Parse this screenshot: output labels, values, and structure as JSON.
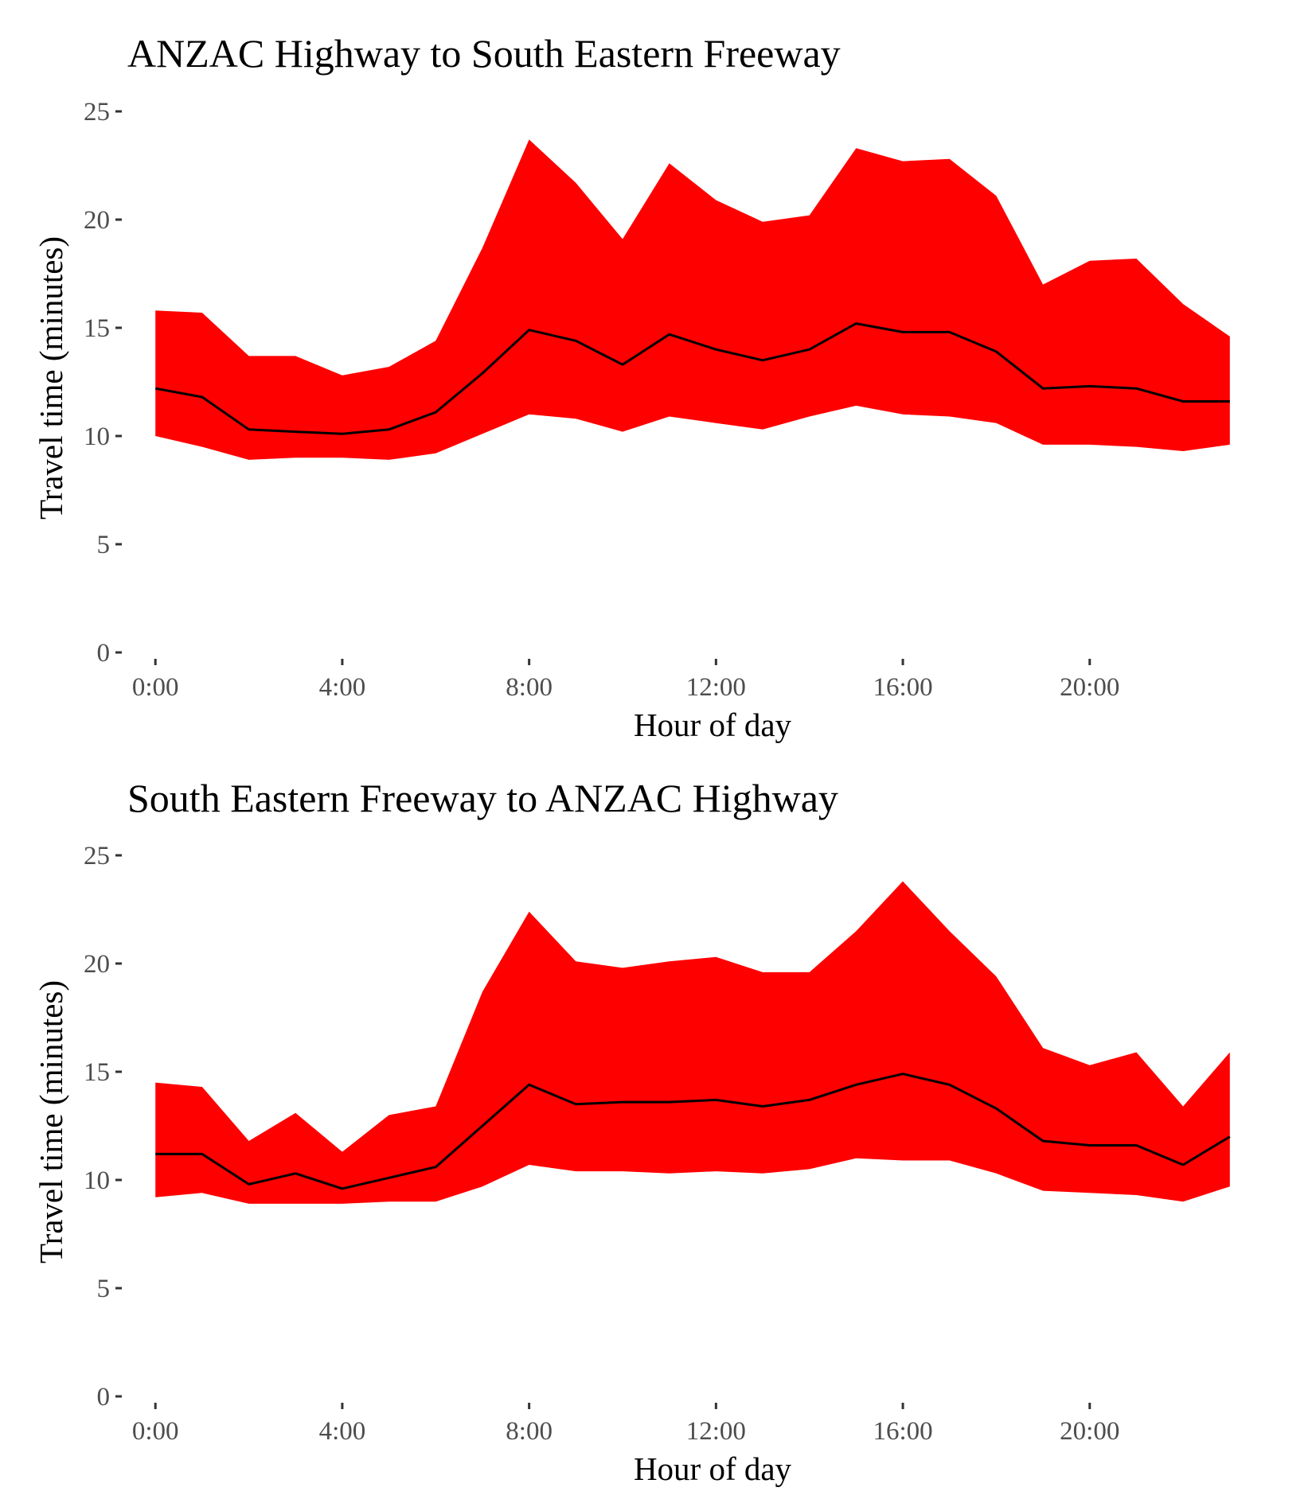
{
  "chart_data": [
    {
      "type": "area",
      "title": "ANZAC Highway to South Eastern Freeway",
      "xlabel": "Hour of day",
      "ylabel": "Travel time (minutes)",
      "x": [
        0,
        1,
        2,
        3,
        4,
        5,
        6,
        7,
        8,
        9,
        10,
        11,
        12,
        13,
        14,
        15,
        16,
        17,
        18,
        19,
        20,
        21,
        22,
        23
      ],
      "x_ticks": [
        0,
        4,
        8,
        12,
        16,
        20
      ],
      "x_tick_labels": [
        "0:00",
        "4:00",
        "8:00",
        "12:00",
        "16:00",
        "20:00"
      ],
      "y_ticks": [
        0,
        5,
        10,
        15,
        20,
        25
      ],
      "y_tick_labels": [
        "0",
        "5",
        "10",
        "15",
        "20",
        "25"
      ],
      "xlim": [
        -0.6,
        23.6
      ],
      "ylim": [
        0,
        25
      ],
      "grid": false,
      "band_color": "#ff0000",
      "line_color": "#000000",
      "series": [
        {
          "role": "upper",
          "values": [
            15.8,
            15.7,
            13.7,
            13.7,
            12.8,
            13.2,
            14.4,
            18.7,
            23.7,
            21.7,
            19.1,
            22.6,
            20.9,
            19.9,
            20.2,
            23.3,
            22.7,
            22.8,
            21.1,
            17.0,
            18.1,
            18.2,
            16.1,
            14.6
          ]
        },
        {
          "role": "median",
          "values": [
            12.2,
            11.8,
            10.3,
            10.2,
            10.1,
            10.3,
            11.1,
            12.9,
            14.9,
            14.4,
            13.3,
            14.7,
            14.0,
            13.5,
            14.0,
            15.2,
            14.8,
            14.8,
            13.9,
            12.2,
            12.3,
            12.2,
            11.6,
            11.6
          ]
        },
        {
          "role": "lower",
          "values": [
            10.0,
            9.5,
            8.9,
            9.0,
            9.0,
            8.9,
            9.2,
            10.1,
            11.0,
            10.8,
            10.2,
            10.9,
            10.6,
            10.3,
            10.9,
            11.4,
            11.0,
            10.9,
            10.6,
            9.6,
            9.6,
            9.5,
            9.3,
            9.6
          ]
        }
      ]
    },
    {
      "type": "area",
      "title": "South Eastern Freeway to ANZAC Highway",
      "xlabel": "Hour of day",
      "ylabel": "Travel time (minutes)",
      "x": [
        0,
        1,
        2,
        3,
        4,
        5,
        6,
        7,
        8,
        9,
        10,
        11,
        12,
        13,
        14,
        15,
        16,
        17,
        18,
        19,
        20,
        21,
        22,
        23
      ],
      "x_ticks": [
        0,
        4,
        8,
        12,
        16,
        20
      ],
      "x_tick_labels": [
        "0:00",
        "4:00",
        "8:00",
        "12:00",
        "16:00",
        "20:00"
      ],
      "y_ticks": [
        0,
        5,
        10,
        15,
        20,
        25
      ],
      "y_tick_labels": [
        "0",
        "5",
        "10",
        "15",
        "20",
        "25"
      ],
      "xlim": [
        -0.6,
        23.6
      ],
      "ylim": [
        0,
        25
      ],
      "grid": false,
      "band_color": "#ff0000",
      "line_color": "#000000",
      "series": [
        {
          "role": "upper",
          "values": [
            14.5,
            14.3,
            11.8,
            13.1,
            11.3,
            13.0,
            13.4,
            18.7,
            22.4,
            20.1,
            19.8,
            20.1,
            20.3,
            19.6,
            19.6,
            21.5,
            23.8,
            21.5,
            19.4,
            16.1,
            15.3,
            15.9,
            13.4,
            15.9
          ]
        },
        {
          "role": "median",
          "values": [
            11.2,
            11.2,
            9.8,
            10.3,
            9.6,
            10.1,
            10.6,
            12.5,
            14.4,
            13.5,
            13.6,
            13.6,
            13.7,
            13.4,
            13.7,
            14.4,
            14.9,
            14.4,
            13.3,
            11.8,
            11.6,
            11.6,
            10.7,
            12.0
          ]
        },
        {
          "role": "lower",
          "values": [
            9.2,
            9.4,
            8.9,
            8.9,
            8.9,
            9.0,
            9.0,
            9.7,
            10.7,
            10.4,
            10.4,
            10.3,
            10.4,
            10.3,
            10.5,
            11.0,
            10.9,
            10.9,
            10.3,
            9.5,
            9.4,
            9.3,
            9.0,
            9.7
          ]
        }
      ]
    }
  ]
}
